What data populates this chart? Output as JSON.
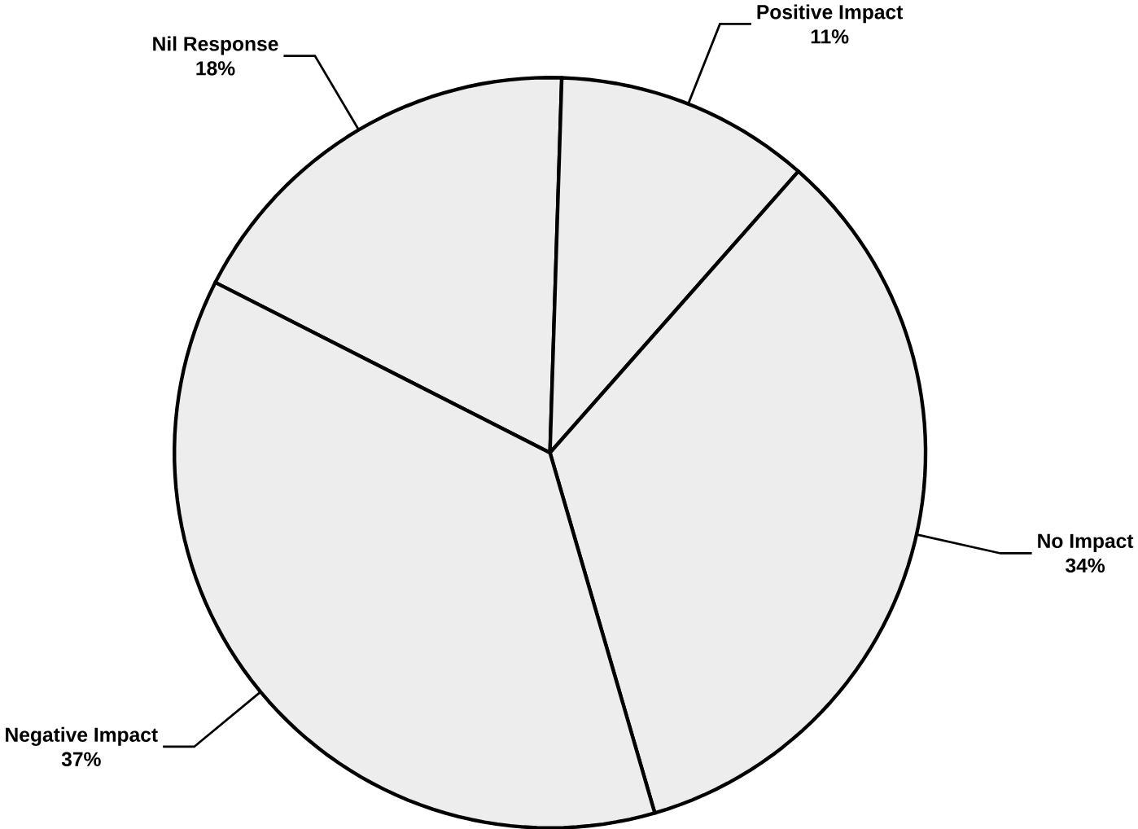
{
  "chart_data": {
    "type": "pie",
    "categories": [
      "Nil Response",
      "Positive Impact",
      "No Impact",
      "Negative Impact"
    ],
    "values": [
      18,
      11,
      34,
      37
    ],
    "value_labels": [
      "18%",
      "11%",
      "34%",
      "37%"
    ],
    "colors": [
      "#ededed",
      "#ededed",
      "#ededed",
      "#ededed"
    ]
  }
}
